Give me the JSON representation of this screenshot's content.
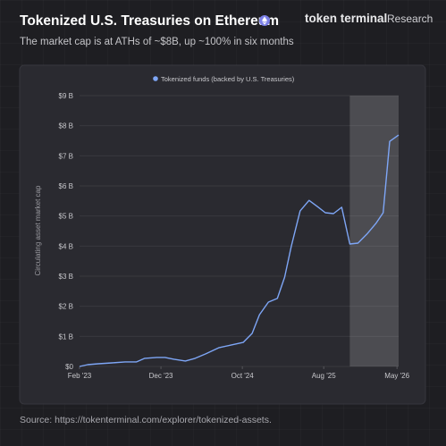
{
  "header": {
    "title": "Tokenized U.S. Treasuries on Ethereum",
    "brand": "token terminal",
    "brand_suffix": "Research",
    "subtitle": "The market cap is at ATHs of ~$8B, up ~100% in six months"
  },
  "chart_data": {
    "type": "line",
    "y_axis_label": "Circulating asset market cap",
    "series": [
      {
        "name": "Tokenized funds (backed by U.S. Treasuries)",
        "color": "#7ea6f6",
        "x": [
          0,
          1,
          2.3,
          4,
          5.6,
          7,
          8,
          9.5,
          10.5,
          11.6,
          13,
          14.2,
          15.5,
          17.1,
          18.6,
          20.1,
          21.2,
          22.1,
          23.2,
          24.3,
          25.2,
          26,
          27.1,
          28.2,
          29.2,
          30.2,
          31.2,
          32.2,
          33.2,
          34.2,
          35.3,
          36.4,
          37.3,
          38.1,
          39.2
        ],
        "values": [
          0.0,
          0.06,
          0.09,
          0.12,
          0.15,
          0.15,
          0.27,
          0.3,
          0.3,
          0.24,
          0.18,
          0.27,
          0.42,
          0.62,
          0.71,
          0.8,
          1.1,
          1.72,
          2.14,
          2.26,
          2.97,
          3.98,
          5.17,
          5.52,
          5.32,
          5.11,
          5.08,
          5.29,
          4.07,
          4.1,
          4.4,
          4.75,
          5.11,
          7.48,
          7.69
        ]
      }
    ],
    "xlim": [
      0,
      39.2
    ],
    "xticks": [
      {
        "value": 0,
        "label": "Feb '23"
      },
      {
        "value": 10,
        "label": "Dec '23"
      },
      {
        "value": 20,
        "label": "Oct '24"
      },
      {
        "value": 30,
        "label": "Aug '25"
      },
      {
        "value": 39,
        "label": "May '26"
      }
    ],
    "ylim": [
      0,
      9
    ],
    "yticks": [
      {
        "value": 0,
        "label": "$0"
      },
      {
        "value": 1,
        "label": "$1 B"
      },
      {
        "value": 2,
        "label": "$2 B"
      },
      {
        "value": 3,
        "label": "$3 B"
      },
      {
        "value": 4,
        "label": "$4 B"
      },
      {
        "value": 5,
        "label": "$5 B"
      },
      {
        "value": 6,
        "label": "$6 B"
      },
      {
        "value": 7,
        "label": "$7 B"
      },
      {
        "value": 8,
        "label": "$8 B"
      },
      {
        "value": 9,
        "label": "$9 B"
      }
    ],
    "highlight_xrange": [
      33.2,
      39.2
    ],
    "grid": true,
    "legend": "top"
  },
  "footer": {
    "source": "Source: https://tokenterminal.com/explorer/tokenized-assets."
  }
}
